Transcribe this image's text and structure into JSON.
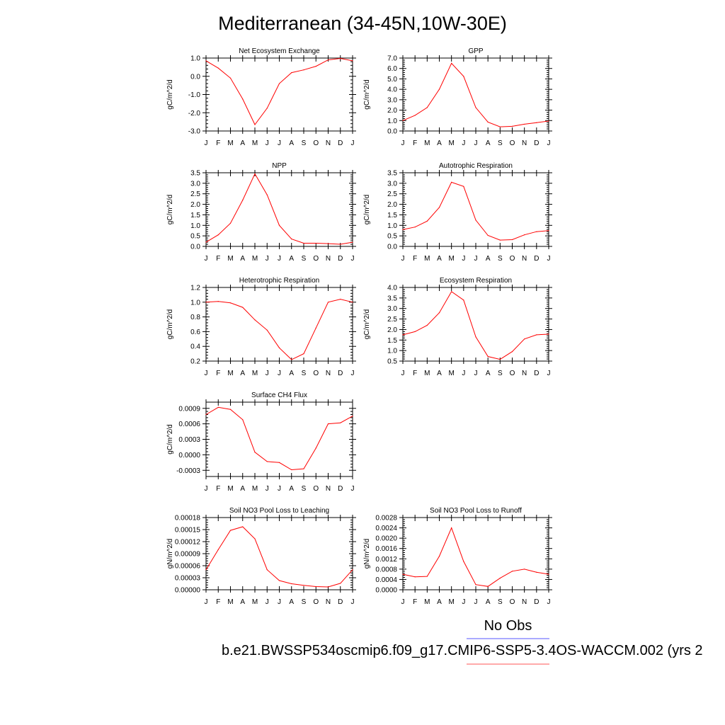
{
  "title": "Mediterranean (34-45N,10W-30E)",
  "legend": {
    "obs_label": "No Obs",
    "case_label": "b.e21.BWSSP534oscmip6.f09_g17.CMIP6-SSP5-3.4OS-WACCM.002 (yrs 2",
    "obs_color": "#5555ff",
    "case_color": "#ff5555"
  },
  "line_color": "#ff0000",
  "chart_data": [
    {
      "type": "line",
      "title": "Net Ecosystem Exchange",
      "ylabel": "gC/m^2/d",
      "x": [
        "J",
        "F",
        "M",
        "A",
        "M",
        "J",
        "J",
        "A",
        "S",
        "O",
        "N",
        "D",
        "J"
      ],
      "ylim": [
        -3.0,
        1.0
      ],
      "yticks": [
        "1.0",
        "0.0",
        "-1.0",
        "-2.0",
        "-3.0"
      ],
      "ytick_values": [
        1.0,
        0.0,
        -1.0,
        -2.0,
        -3.0
      ],
      "values": [
        0.85,
        0.45,
        -0.1,
        -1.25,
        -2.65,
        -1.75,
        -0.4,
        0.2,
        0.35,
        0.55,
        0.9,
        0.98,
        0.85
      ]
    },
    {
      "type": "line",
      "title": "GPP",
      "ylabel": "gC/m^2/d",
      "x": [
        "J",
        "F",
        "M",
        "A",
        "M",
        "J",
        "J",
        "A",
        "S",
        "O",
        "N",
        "D",
        "J"
      ],
      "ylim": [
        0.0,
        7.0
      ],
      "yticks": [
        "7.0",
        "6.0",
        "5.0",
        "4.0",
        "3.0",
        "2.0",
        "1.0",
        "0.0"
      ],
      "ytick_values": [
        7.0,
        6.0,
        5.0,
        4.0,
        3.0,
        2.0,
        1.0,
        0.0
      ],
      "values": [
        1.0,
        1.5,
        2.25,
        4.0,
        6.5,
        5.25,
        2.25,
        0.85,
        0.4,
        0.45,
        0.65,
        0.8,
        0.95
      ]
    },
    {
      "type": "line",
      "title": "NPP",
      "ylabel": "gC/m^2/d",
      "x": [
        "J",
        "F",
        "M",
        "A",
        "M",
        "J",
        "J",
        "A",
        "S",
        "O",
        "N",
        "D",
        "J"
      ],
      "ylim": [
        0.0,
        3.5
      ],
      "yticks": [
        "3.5",
        "3.0",
        "2.5",
        "2.0",
        "1.5",
        "1.0",
        "0.5",
        "0.0"
      ],
      "ytick_values": [
        3.5,
        3.0,
        2.5,
        2.0,
        1.5,
        1.0,
        0.5,
        0.0
      ],
      "values": [
        0.2,
        0.55,
        1.1,
        2.2,
        3.45,
        2.45,
        1.0,
        0.35,
        0.15,
        0.15,
        0.13,
        0.1,
        0.2
      ]
    },
    {
      "type": "line",
      "title": "Autotrophic Respiration",
      "ylabel": "gC/m^2/d",
      "x": [
        "J",
        "F",
        "M",
        "A",
        "M",
        "J",
        "J",
        "A",
        "S",
        "O",
        "N",
        "D",
        "J"
      ],
      "ylim": [
        0.0,
        3.5
      ],
      "yticks": [
        "3.5",
        "3.0",
        "2.5",
        "2.0",
        "1.5",
        "1.0",
        "0.5",
        "0.0"
      ],
      "ytick_values": [
        3.5,
        3.0,
        2.5,
        2.0,
        1.5,
        1.0,
        0.5,
        0.0
      ],
      "values": [
        0.8,
        0.92,
        1.2,
        1.85,
        3.05,
        2.85,
        1.25,
        0.52,
        0.3,
        0.32,
        0.55,
        0.7,
        0.75
      ]
    },
    {
      "type": "line",
      "title": "Heterotrophic Respiration",
      "ylabel": "gC/m^2/d",
      "x": [
        "J",
        "F",
        "M",
        "A",
        "M",
        "J",
        "J",
        "A",
        "S",
        "O",
        "N",
        "D",
        "J"
      ],
      "ylim": [
        0.2,
        1.2
      ],
      "yticks": [
        "1.2",
        "1.0",
        "0.8",
        "0.6",
        "0.4",
        "0.2"
      ],
      "ytick_values": [
        1.2,
        1.0,
        0.8,
        0.6,
        0.4,
        0.2
      ],
      "values": [
        1.0,
        1.01,
        0.99,
        0.93,
        0.76,
        0.62,
        0.38,
        0.22,
        0.3,
        0.65,
        1.0,
        1.04,
        1.0
      ]
    },
    {
      "type": "line",
      "title": "Ecosystem Respiration",
      "ylabel": "gC/m^2/d",
      "x": [
        "J",
        "F",
        "M",
        "A",
        "M",
        "J",
        "J",
        "A",
        "S",
        "O",
        "N",
        "D",
        "J"
      ],
      "ylim": [
        0.5,
        4.0
      ],
      "yticks": [
        "4.0",
        "3.5",
        "3.0",
        "2.5",
        "2.0",
        "1.5",
        "1.0",
        "0.5"
      ],
      "ytick_values": [
        4.0,
        3.5,
        3.0,
        2.5,
        2.0,
        1.5,
        1.0,
        0.5
      ],
      "values": [
        1.75,
        1.9,
        2.2,
        2.8,
        3.8,
        3.4,
        1.65,
        0.72,
        0.58,
        0.95,
        1.55,
        1.75,
        1.78
      ]
    },
    {
      "type": "line",
      "title": "Surface CH4 Flux",
      "ylabel": "gC/m^2/d",
      "x": [
        "J",
        "F",
        "M",
        "A",
        "M",
        "J",
        "J",
        "A",
        "S",
        "O",
        "N",
        "D",
        "J"
      ],
      "ylim": [
        -0.00042,
        0.00102
      ],
      "yticks": [
        "0.0009",
        "0.0006",
        "0.0003",
        "0.0000",
        "-0.0003"
      ],
      "ytick_values": [
        0.0009,
        0.0006,
        0.0003,
        0.0,
        -0.0003
      ],
      "values": [
        0.00078,
        0.00092,
        0.00088,
        0.00068,
        5e-05,
        -0.00013,
        -0.00015,
        -0.00029,
        -0.00027,
        0.00013,
        0.0006,
        0.00062,
        0.00075
      ]
    },
    {
      "type": "line",
      "title": "Soil NO3 Pool Loss to Leaching",
      "ylabel": "gN/m^2/d",
      "x": [
        "J",
        "F",
        "M",
        "A",
        "M",
        "J",
        "J",
        "A",
        "S",
        "O",
        "N",
        "D",
        "J"
      ],
      "ylim": [
        0.0,
        0.00018
      ],
      "yticks": [
        "0.00018",
        "0.00015",
        "0.00012",
        "0.00009",
        "0.00006",
        "0.00003",
        "0.00000"
      ],
      "ytick_values": [
        0.00018,
        0.00015,
        0.00012,
        9e-05,
        6e-05,
        3e-05,
        0.0
      ],
      "values": [
        5e-05,
        0.0001,
        0.000148,
        0.000157,
        0.000127,
        5e-05,
        2.3e-05,
        1.5e-05,
        1.1e-05,
        8e-06,
        7e-06,
        1.6e-05,
        5e-05
      ]
    },
    {
      "type": "line",
      "title": "Soil NO3 Pool Loss to Runoff",
      "ylabel": "gN/m^2/d",
      "x": [
        "J",
        "F",
        "M",
        "A",
        "M",
        "J",
        "J",
        "A",
        "S",
        "O",
        "N",
        "D",
        "J"
      ],
      "ylim": [
        0.0,
        0.0028
      ],
      "yticks": [
        "0.0028",
        "0.0024",
        "0.0020",
        "0.0016",
        "0.0012",
        "0.0008",
        "0.0004",
        "0.0000"
      ],
      "ytick_values": [
        0.0028,
        0.0024,
        0.002,
        0.0016,
        0.0012,
        0.0008,
        0.0004,
        0.0
      ],
      "values": [
        0.0006,
        0.0005,
        0.00052,
        0.0013,
        0.0024,
        0.0011,
        0.0002,
        0.00013,
        0.00045,
        0.00072,
        0.0008,
        0.00068,
        0.0006
      ]
    }
  ]
}
